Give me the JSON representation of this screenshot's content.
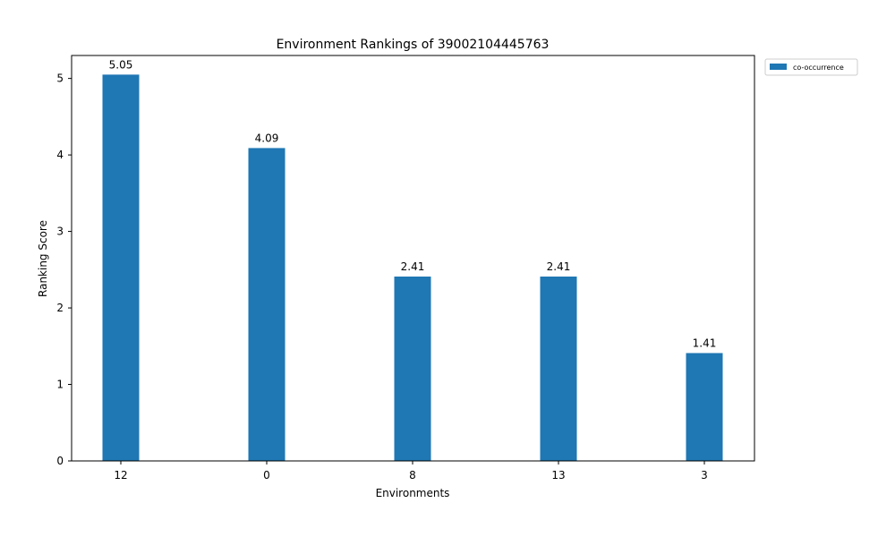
{
  "chart_data": {
    "type": "bar",
    "title": "Environment Rankings of 39002104445763",
    "xlabel": "Environments",
    "ylabel": "Ranking Score",
    "categories": [
      "12",
      "0",
      "8",
      "13",
      "3"
    ],
    "series": [
      {
        "name": "co-occurrence",
        "values": [
          5.05,
          4.09,
          2.41,
          2.41,
          1.41
        ],
        "value_labels": [
          "5.05",
          "4.09",
          "2.41",
          "2.41",
          "1.41"
        ],
        "color": "#1f77b4"
      }
    ],
    "ylim": [
      0,
      5.3
    ],
    "yticks": [
      0,
      1,
      2,
      3,
      4,
      5
    ],
    "grid": false,
    "legend_position": "outside-top-right"
  }
}
